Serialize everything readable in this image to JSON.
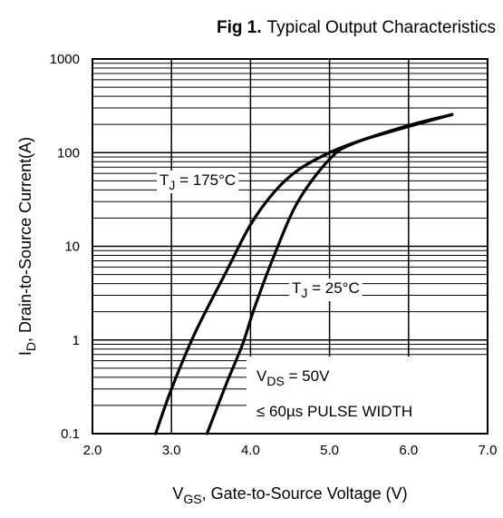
{
  "figure": {
    "label": "Fig 1.",
    "caption": "Typical Output Characteristics"
  },
  "chart_data": {
    "type": "line",
    "title": "Fig 1. Typical Output Characteristics",
    "xlabel": {
      "main": "V",
      "sub": "GS",
      "rest": ", Gate-to-Source Voltage (V)"
    },
    "ylabel": {
      "main": "I",
      "sub": "D",
      "rest": ", Drain-to-Source Current(A)"
    },
    "xlim": [
      2.0,
      7.0
    ],
    "ylim": [
      0.1,
      1000
    ],
    "yscale": "log",
    "grid": true,
    "x_ticks": [
      "2.0",
      "3.0",
      "4.0",
      "5.0",
      "6.0",
      "7.0"
    ],
    "y_ticks": [
      "0.1",
      "1",
      "10",
      "100",
      "1000"
    ],
    "series": [
      {
        "name": "TJ = 175°C",
        "label": {
          "main": "T",
          "sub": "J",
          "rest": " = 175°C"
        },
        "points": [
          [
            2.8,
            0.1
          ],
          [
            3.0,
            0.3
          ],
          [
            3.3,
            1.2
          ],
          [
            3.7,
            5.5
          ],
          [
            4.0,
            17
          ],
          [
            4.3,
            38
          ],
          [
            4.6,
            65
          ],
          [
            5.0,
            100
          ],
          [
            5.4,
            135
          ],
          [
            6.0,
            190
          ],
          [
            6.55,
            255
          ]
        ]
      },
      {
        "name": "TJ = 25°C",
        "label": {
          "main": "T",
          "sub": "J",
          "rest": " = 25°C"
        },
        "points": [
          [
            3.45,
            0.1
          ],
          [
            3.7,
            0.35
          ],
          [
            3.9,
            0.9
          ],
          [
            4.05,
            2.2
          ],
          [
            4.3,
            8
          ],
          [
            4.6,
            30
          ],
          [
            5.0,
            85
          ],
          [
            5.3,
            125
          ],
          [
            6.0,
            195
          ],
          [
            6.55,
            255
          ]
        ]
      }
    ],
    "legend_box": {
      "line1": {
        "main": "V",
        "sub": "DS",
        "rest": " = 50V"
      },
      "line2": "≤ 60µs PULSE WIDTH",
      "placement": "bottom-right"
    }
  }
}
